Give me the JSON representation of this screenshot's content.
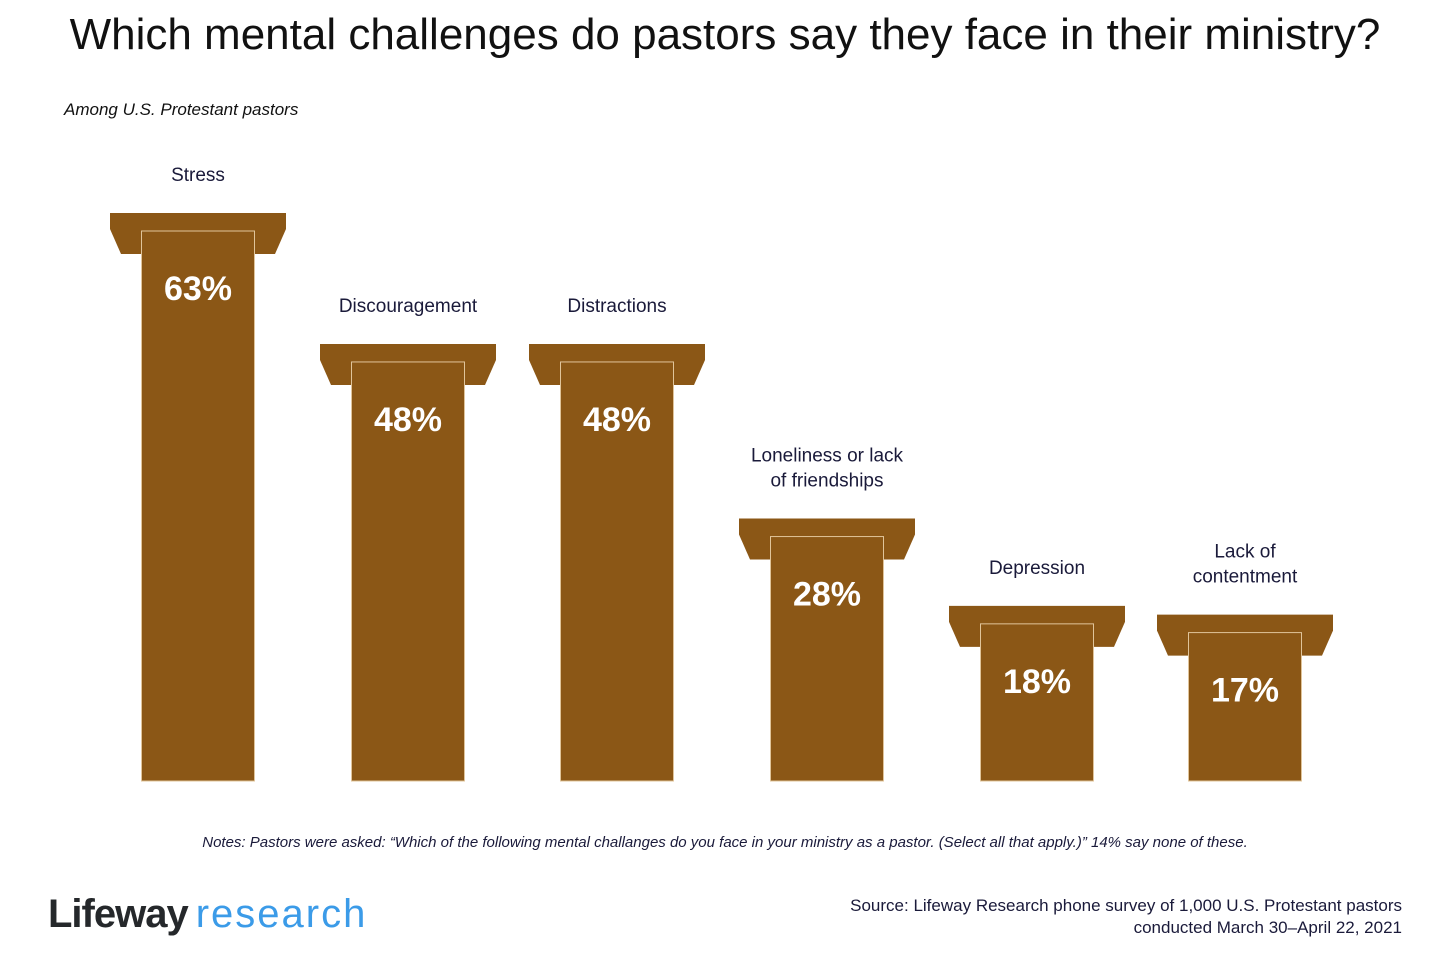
{
  "title": "Which mental challenges do pastors say they face in their ministry?",
  "subtitle": "Among U.S. Protestant pastors",
  "chart_data": {
    "type": "bar",
    "categories": [
      "Stress",
      "Discouragement",
      "Distractions",
      "Loneliness or lack of friendships",
      "Depression",
      "Lack of contentment"
    ],
    "values": [
      63,
      48,
      48,
      28,
      18,
      17
    ],
    "value_labels": [
      "63%",
      "48%",
      "48%",
      "28%",
      "18%",
      "17%"
    ],
    "unit": "%",
    "bar_color": "#8B5716",
    "ylim": [
      0,
      63
    ],
    "grid": false
  },
  "notes": "Notes: Pastors were asked: “Which of the following mental challanges do you face in your ministry as a pastor. (Select all that apply.)” 14% say none of these.",
  "logo": {
    "part1": "Lifeway",
    "part2": "research"
  },
  "source": {
    "line1": "Source: Lifeway Research phone survey of 1,000 U.S. Protestant pastors",
    "line2": "conducted March 30–April 22, 2021"
  }
}
